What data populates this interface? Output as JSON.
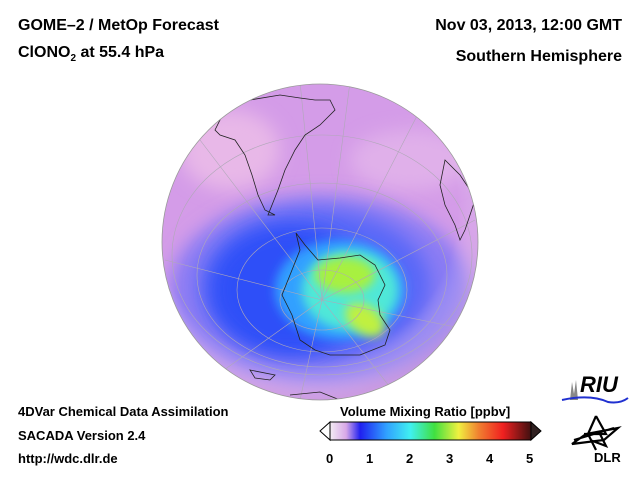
{
  "header": {
    "title_line1": "GOME–2 / MetOp Forecast",
    "species_prefix": "ClONO",
    "species_subscript": "2",
    "species_suffix": " at 55.4 hPa",
    "datetime": "Nov 03, 2013, 12:00 GMT",
    "region": "Southern Hemisphere"
  },
  "footer": {
    "line1": "4DVar Chemical Data Assimilation",
    "line2": "SACADA Version 2.4",
    "url": "http://wdc.dlr.de"
  },
  "colorbar": {
    "title": "Volume Mixing Ratio [ppbv]",
    "ticks": [
      "0",
      "1",
      "2",
      "3",
      "4",
      "5"
    ],
    "range": [
      0,
      5
    ],
    "colors": [
      "#f4ecf4",
      "#d8a8e8",
      "#4040ff",
      "#2080ff",
      "#40f0f0",
      "#40e040",
      "#f0f040",
      "#f08030",
      "#f02020",
      "#401010"
    ]
  },
  "logos": {
    "riu": "RIU",
    "dlr": "DLR"
  }
}
